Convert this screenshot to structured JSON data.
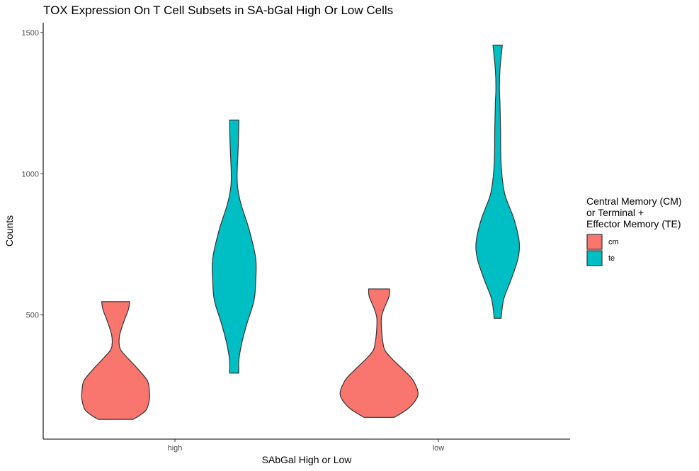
{
  "chart_data": {
    "type": "violin",
    "title": "TOX Expression On T Cell Subsets in SA-bGal High Or Low Cells",
    "xlabel": "SAbGal High or Low",
    "ylabel": "Counts",
    "categories": [
      "high",
      "low"
    ],
    "ylim": [
      60,
      1535
    ],
    "yticks": [
      500,
      1000,
      1500
    ],
    "grid": false,
    "legend": {
      "title_lines": [
        "Central Memory (CM)",
        " or Terminal +",
        " Effector Memory (TE)"
      ],
      "placement": "right",
      "entries": [
        {
          "label": "cm",
          "color": "#F8766D"
        },
        {
          "label": "te",
          "color": "#00BFC4"
        }
      ]
    },
    "series": [
      {
        "name": "cm",
        "color": "#F8766D",
        "violins": [
          {
            "category": "high",
            "min": 130,
            "max": 547,
            "profile": [
              [
                547,
                0.24
              ],
              [
                520,
                0.22
              ],
              [
                470,
                0.13
              ],
              [
                430,
                0.07
              ],
              [
                400,
                0.06
              ],
              [
                375,
                0.09
              ],
              [
                340,
                0.24
              ],
              [
                300,
                0.42
              ],
              [
                265,
                0.55
              ],
              [
                230,
                0.58
              ],
              [
                200,
                0.58
              ],
              [
                165,
                0.53
              ],
              [
                145,
                0.42
              ],
              [
                130,
                0.3
              ]
            ]
          },
          {
            "category": "low",
            "min": 137,
            "max": 592,
            "profile": [
              [
                592,
                0.18
              ],
              [
                565,
                0.17
              ],
              [
                520,
                0.08
              ],
              [
                490,
                0.04
              ],
              [
                455,
                0.04
              ],
              [
                410,
                0.06
              ],
              [
                375,
                0.1
              ],
              [
                345,
                0.22
              ],
              [
                305,
                0.42
              ],
              [
                270,
                0.58
              ],
              [
                225,
                0.67
              ],
              [
                195,
                0.62
              ],
              [
                165,
                0.48
              ],
              [
                137,
                0.26
              ]
            ]
          }
        ]
      },
      {
        "name": "te",
        "color": "#00BFC4",
        "violins": [
          {
            "category": "high",
            "min": 294,
            "max": 1190,
            "profile": [
              [
                1190,
                0.08
              ],
              [
                1100,
                0.07
              ],
              [
                1000,
                0.05
              ],
              [
                950,
                0.06
              ],
              [
                890,
                0.12
              ],
              [
                800,
                0.26
              ],
              [
                700,
                0.37
              ],
              [
                620,
                0.37
              ],
              [
                550,
                0.34
              ],
              [
                470,
                0.22
              ],
              [
                400,
                0.13
              ],
              [
                340,
                0.08
              ],
              [
                294,
                0.08
              ]
            ]
          },
          {
            "category": "low",
            "min": 488,
            "max": 1455,
            "profile": [
              [
                1455,
                0.08
              ],
              [
                1370,
                0.04
              ],
              [
                1300,
                0.03
              ],
              [
                1250,
                0.04
              ],
              [
                1150,
                0.05
              ],
              [
                1030,
                0.06
              ],
              [
                930,
                0.12
              ],
              [
                840,
                0.28
              ],
              [
                760,
                0.37
              ],
              [
                700,
                0.35
              ],
              [
                630,
                0.24
              ],
              [
                560,
                0.11
              ],
              [
                510,
                0.07
              ],
              [
                488,
                0.06
              ]
            ]
          }
        ]
      }
    ]
  }
}
